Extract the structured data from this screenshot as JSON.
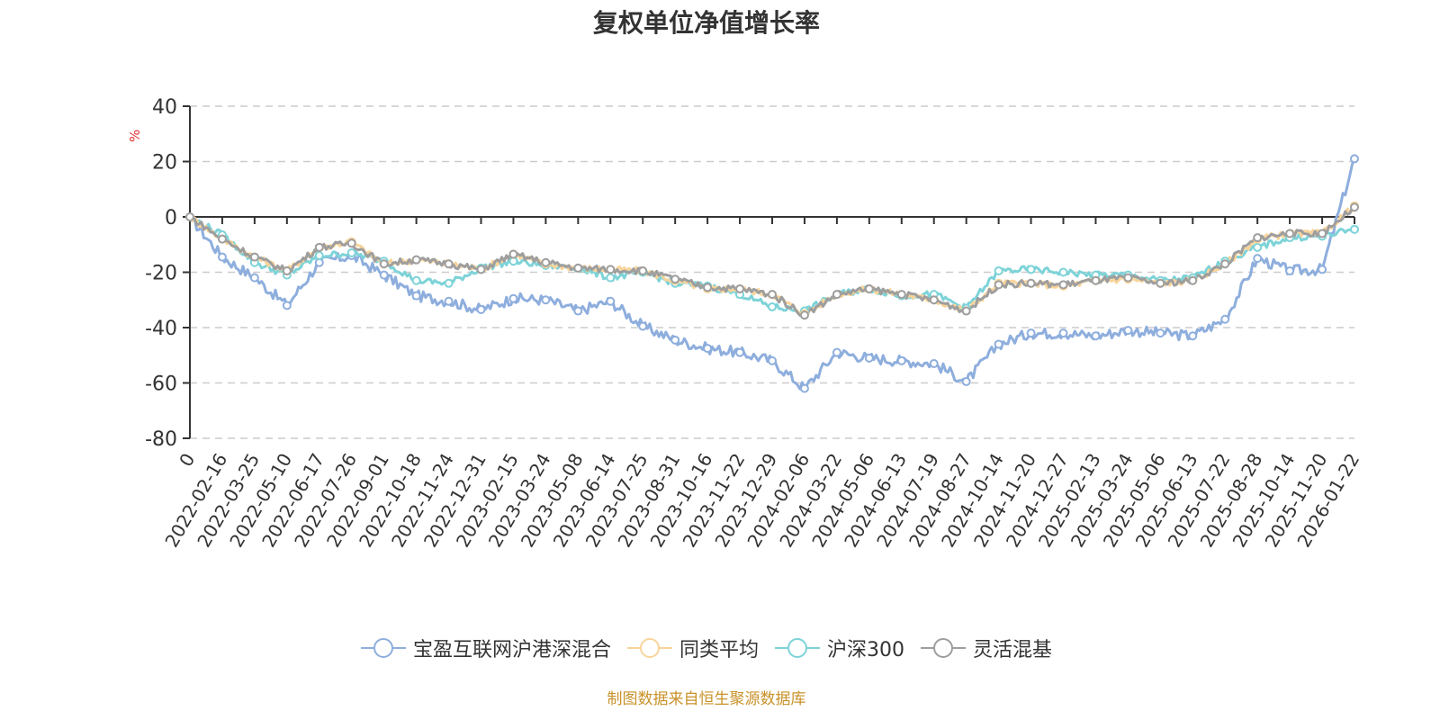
{
  "chart_data": {
    "type": "line",
    "title": "复权单位净值增长率",
    "ylabel": "%",
    "xlabel": "",
    "ylim": [
      -80,
      40
    ],
    "yticks": [
      40,
      20,
      0,
      -20,
      -40,
      -60,
      -80
    ],
    "grid": true,
    "legend_position": "bottom",
    "categories": [
      "0",
      "2022-02-16",
      "2022-03-25",
      "2022-05-10",
      "2022-06-17",
      "2022-07-26",
      "2022-09-01",
      "2022-10-18",
      "2022-11-24",
      "2022-12-31",
      "2023-02-15",
      "2023-03-24",
      "2023-05-08",
      "2023-06-14",
      "2023-07-25",
      "2023-08-31",
      "2023-10-16",
      "2023-11-22",
      "2023-12-29",
      "2024-02-06",
      "2024-03-22",
      "2024-05-06",
      "2024-06-13",
      "2024-07-19",
      "2024-08-27",
      "2024-10-14",
      "2024-11-20",
      "2024-12-27",
      "2025-02-13",
      "2025-03-24",
      "2025-05-06",
      "2025-06-13",
      "2025-07-22",
      "2025-08-28",
      "2025-10-14",
      "2025-11-20",
      "2026-01-22"
    ],
    "series": [
      {
        "name": "宝盈互联网沪港深混合",
        "color": "#8eaedd",
        "values": [
          0,
          -14.5,
          -22,
          -32,
          -16.5,
          -14,
          -21,
          -28.5,
          -30.5,
          -33.5,
          -29.5,
          -30,
          -34,
          -30.5,
          -39.5,
          -44.5,
          -47.5,
          -49,
          -52,
          -62,
          -49,
          -51,
          -52,
          -53,
          -59.5,
          -46,
          -42,
          -42,
          -43,
          -41,
          -42,
          -43,
          -37,
          -15,
          -19.5,
          -19,
          21
        ]
      },
      {
        "name": "同类平均",
        "color": "#f9d49a",
        "values": [
          0,
          -8,
          -14.5,
          -19.5,
          -11,
          -9,
          -17,
          -15.5,
          -17,
          -19,
          -13.5,
          -17,
          -18.5,
          -19,
          -19.5,
          -23,
          -26,
          -26,
          -28,
          -35,
          -28,
          -26,
          -28,
          -30,
          -34,
          -24,
          -24,
          -25,
          -23,
          -22.5,
          -24,
          -23,
          -17,
          -8,
          -6,
          -6,
          4
        ]
      },
      {
        "name": "沪深300",
        "color": "#7dd3d8",
        "values": [
          0,
          -6.5,
          -16.5,
          -21,
          -14,
          -13,
          -16,
          -23,
          -24,
          -18.5,
          -16,
          -17.5,
          -18.5,
          -22,
          -20,
          -24,
          -25,
          -28,
          -32.5,
          -34,
          -28,
          -26,
          -28.5,
          -28,
          -33,
          -19.5,
          -19,
          -20,
          -21,
          -21,
          -23,
          -22,
          -16,
          -11,
          -7.5,
          -7,
          -4.5
        ]
      },
      {
        "name": "灵活混基",
        "color": "#9e9e9e",
        "values": [
          0,
          -8,
          -14.5,
          -19.5,
          -11,
          -9.5,
          -17,
          -15.5,
          -17,
          -19,
          -13.5,
          -16.5,
          -18.5,
          -19,
          -19.5,
          -22.5,
          -25.5,
          -26,
          -28,
          -35.5,
          -28,
          -26,
          -28,
          -30,
          -34,
          -24.5,
          -24,
          -24.5,
          -23,
          -22,
          -24,
          -23,
          -17,
          -7.5,
          -6,
          -6,
          3.5
        ]
      }
    ]
  },
  "legend": {
    "items": [
      {
        "label": "宝盈互联网沪港深混合",
        "color": "#8eaedd"
      },
      {
        "label": "同类平均",
        "color": "#f9d49a"
      },
      {
        "label": "沪深300",
        "color": "#7dd3d8"
      },
      {
        "label": "灵活混基",
        "color": "#9e9e9e"
      }
    ]
  },
  "source_note": "制图数据来自恒生聚源数据库",
  "colors": {
    "axis": "#333333",
    "grid": "#cccccc",
    "ylabel_unit": "#e03030",
    "source": "#c8922a"
  }
}
